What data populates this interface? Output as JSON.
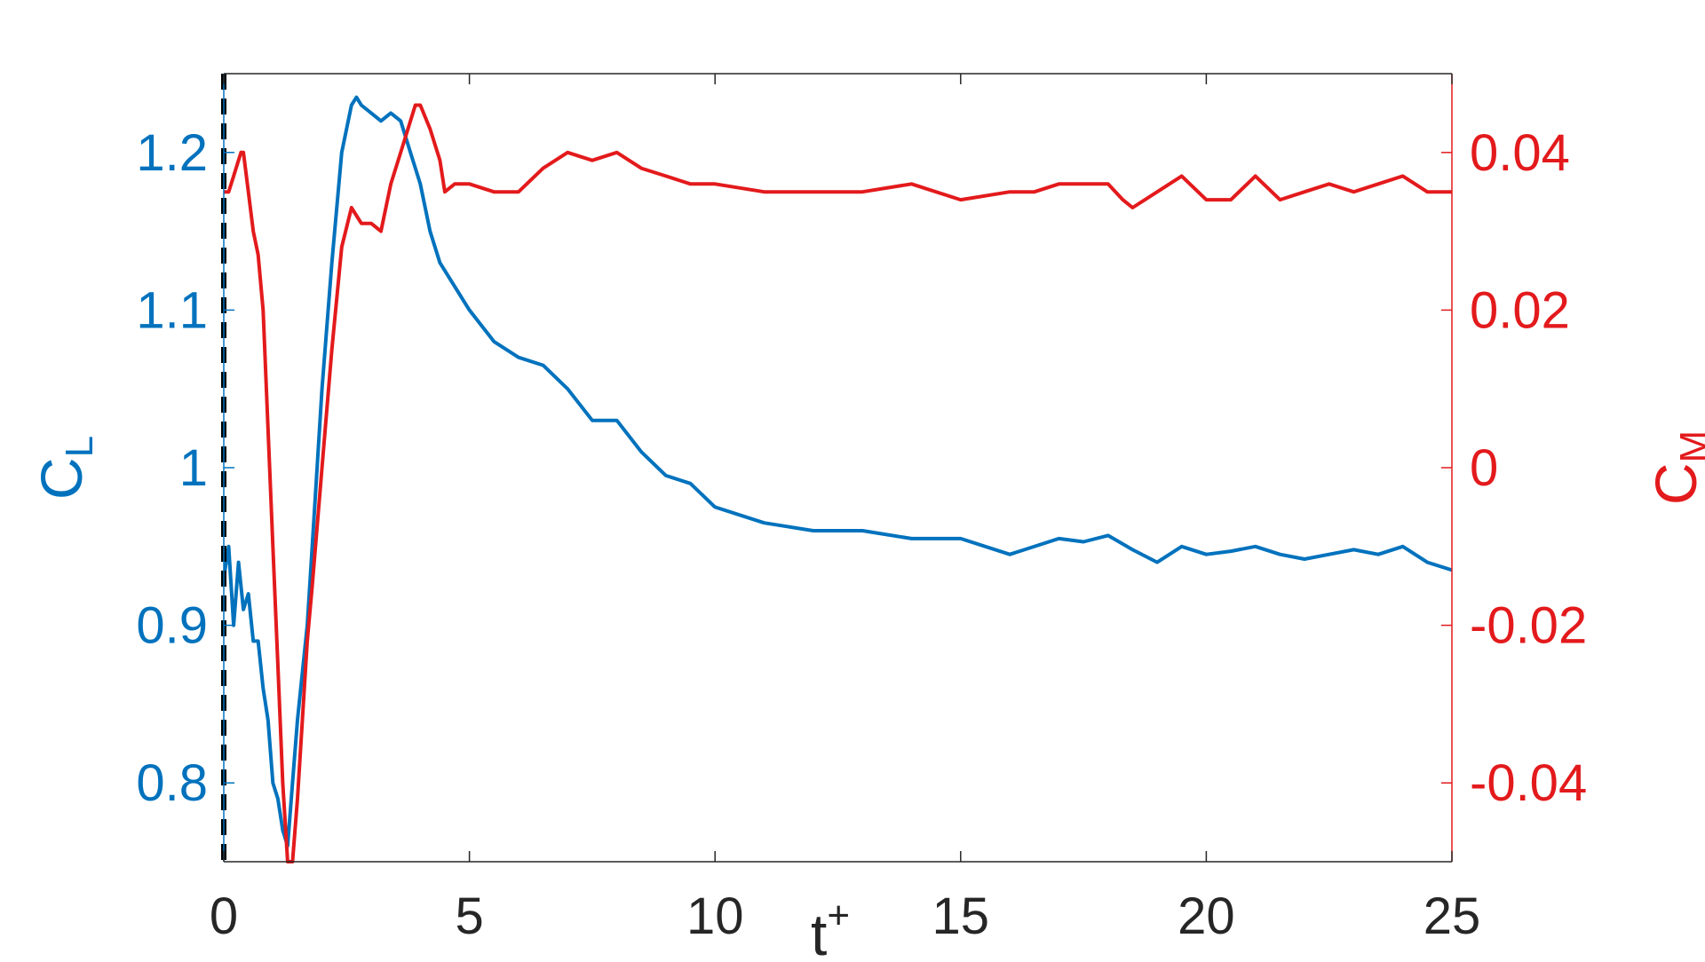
{
  "chart_data": {
    "type": "line",
    "xlabel": "t",
    "xlabel_sup": "+",
    "ylabel_left": "C",
    "ylabel_left_sub": "L",
    "ylabel_right": "C",
    "ylabel_right_sub": "M",
    "xlim": [
      0,
      25
    ],
    "ylim_left": [
      0.75,
      1.25
    ],
    "ylim_right": [
      -0.05,
      0.05
    ],
    "x_ticks": [
      "0",
      "5",
      "10",
      "15",
      "20",
      "25"
    ],
    "x_tick_values": [
      0,
      5,
      10,
      15,
      20,
      25
    ],
    "y_left_ticks": [
      "0.8",
      "0.9",
      "1",
      "1.1",
      "1.2"
    ],
    "y_left_tick_values": [
      0.8,
      0.9,
      1.0,
      1.1,
      1.2
    ],
    "y_right_ticks": [
      "-0.04",
      "-0.02",
      "0",
      "0.02",
      "0.04"
    ],
    "y_right_tick_values": [
      -0.04,
      -0.02,
      0,
      0.02,
      0.04
    ],
    "grid": false,
    "colors": {
      "cl": "#0072BD",
      "cm": "#E31A1C",
      "axis": "#262626",
      "marker_line": "#000000"
    },
    "vertical_marker_x": 0,
    "series": [
      {
        "axis": "left",
        "color": "#0072BD",
        "x": [
          0,
          0.1,
          0.2,
          0.3,
          0.4,
          0.5,
          0.6,
          0.7,
          0.8,
          0.9,
          1.0,
          1.1,
          1.2,
          1.3,
          1.4,
          1.5,
          1.6,
          1.7,
          1.8,
          2.0,
          2.2,
          2.4,
          2.6,
          2.7,
          2.8,
          3.0,
          3.2,
          3.4,
          3.6,
          3.8,
          4.0,
          4.2,
          4.4,
          4.6,
          5.0,
          5.5,
          6.0,
          6.5,
          7.0,
          7.5,
          8.0,
          8.5,
          9.0,
          9.5,
          10.0,
          11.0,
          12.0,
          13.0,
          14.0,
          15.0,
          16.0,
          17.0,
          17.5,
          18.0,
          18.5,
          19.0,
          19.5,
          20.0,
          20.5,
          21.0,
          21.5,
          22.0,
          22.5,
          23.0,
          23.5,
          24.0,
          24.5,
          25.0
        ],
        "values": [
          0.93,
          0.95,
          0.9,
          0.94,
          0.91,
          0.92,
          0.89,
          0.89,
          0.86,
          0.84,
          0.8,
          0.79,
          0.77,
          0.76,
          0.8,
          0.84,
          0.87,
          0.9,
          0.95,
          1.05,
          1.13,
          1.2,
          1.23,
          1.235,
          1.23,
          1.225,
          1.22,
          1.225,
          1.22,
          1.2,
          1.18,
          1.15,
          1.13,
          1.12,
          1.1,
          1.08,
          1.07,
          1.065,
          1.05,
          1.03,
          1.03,
          1.01,
          0.995,
          0.99,
          0.975,
          0.965,
          0.96,
          0.96,
          0.955,
          0.955,
          0.945,
          0.955,
          0.953,
          0.957,
          0.948,
          0.94,
          0.95,
          0.945,
          0.947,
          0.95,
          0.945,
          0.942,
          0.945,
          0.948,
          0.945,
          0.95,
          0.94,
          0.935
        ]
      },
      {
        "axis": "right",
        "color": "#E31A1C",
        "x": [
          0,
          0.1,
          0.2,
          0.3,
          0.35,
          0.4,
          0.5,
          0.6,
          0.7,
          0.8,
          0.9,
          1.0,
          1.1,
          1.2,
          1.3,
          1.4,
          1.5,
          1.6,
          1.7,
          1.8,
          2.0,
          2.2,
          2.4,
          2.6,
          2.8,
          3.0,
          3.2,
          3.4,
          3.6,
          3.8,
          3.9,
          4.0,
          4.2,
          4.4,
          4.5,
          4.7,
          5.0,
          5.5,
          6.0,
          6.5,
          7.0,
          7.5,
          8.0,
          8.5,
          9.0,
          9.5,
          10.0,
          11.0,
          12.0,
          13.0,
          14.0,
          15.0,
          16.0,
          16.5,
          17.0,
          17.5,
          18.0,
          18.3,
          18.5,
          19.0,
          19.5,
          20.0,
          20.5,
          21.0,
          21.5,
          22.0,
          22.5,
          23.0,
          23.5,
          24.0,
          24.5,
          25.0
        ],
        "values": [
          0.035,
          0.035,
          0.037,
          0.039,
          0.04,
          0.04,
          0.035,
          0.03,
          0.027,
          0.02,
          0.005,
          -0.01,
          -0.025,
          -0.04,
          -0.05,
          -0.05,
          -0.042,
          -0.032,
          -0.022,
          -0.015,
          0.0,
          0.015,
          0.028,
          0.033,
          0.031,
          0.031,
          0.03,
          0.036,
          0.04,
          0.044,
          0.046,
          0.046,
          0.043,
          0.039,
          0.035,
          0.036,
          0.036,
          0.035,
          0.035,
          0.038,
          0.04,
          0.039,
          0.04,
          0.038,
          0.037,
          0.036,
          0.036,
          0.035,
          0.035,
          0.035,
          0.036,
          0.034,
          0.035,
          0.035,
          0.036,
          0.036,
          0.036,
          0.034,
          0.033,
          0.035,
          0.037,
          0.034,
          0.034,
          0.037,
          0.034,
          0.035,
          0.036,
          0.035,
          0.036,
          0.037,
          0.035,
          0.035
        ]
      }
    ]
  }
}
